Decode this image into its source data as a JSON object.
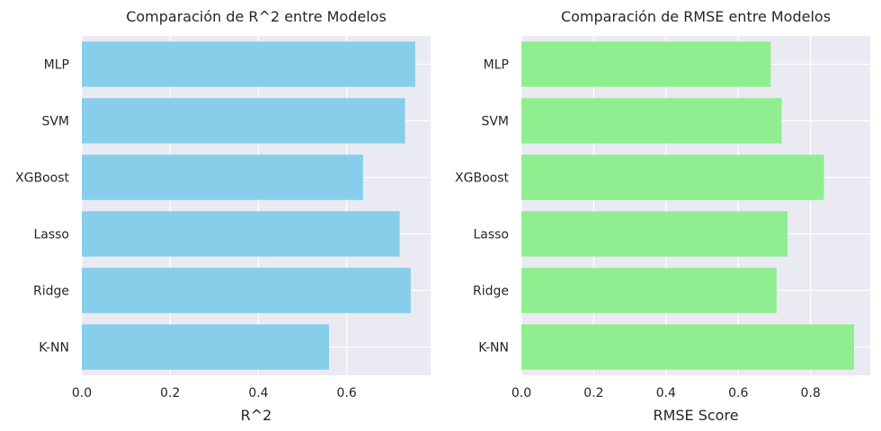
{
  "chart_data": [
    {
      "type": "bar",
      "orientation": "horizontal",
      "title": "Comparación de R^2 entre Modelos",
      "xlabel": "R^2",
      "ylabel": "",
      "categories": [
        "K-NN",
        "Ridge",
        "Lasso",
        "XGBoost",
        "SVM",
        "MLP"
      ],
      "values": [
        0.56,
        0.745,
        0.72,
        0.637,
        0.732,
        0.755
      ],
      "xlim": [
        0,
        0.79
      ],
      "xticks": [
        "0.0",
        "0.2",
        "0.4",
        "0.6"
      ],
      "bar_color": "#87CEEB",
      "grid": true,
      "background": "#EAEAF2"
    },
    {
      "type": "bar",
      "orientation": "horizontal",
      "title": "Comparación de RMSE entre Modelos",
      "xlabel": "RMSE Score",
      "ylabel": "",
      "categories": [
        "K-NN",
        "Ridge",
        "Lasso",
        "XGBoost",
        "SVM",
        "MLP"
      ],
      "values": [
        0.92,
        0.706,
        0.736,
        0.837,
        0.72,
        0.69
      ],
      "xlim": [
        0,
        0.965
      ],
      "xticks": [
        "0.0",
        "0.2",
        "0.4",
        "0.6",
        "0.8"
      ],
      "bar_color": "#90EE90",
      "grid": true,
      "background": "#EAEAF2"
    }
  ]
}
